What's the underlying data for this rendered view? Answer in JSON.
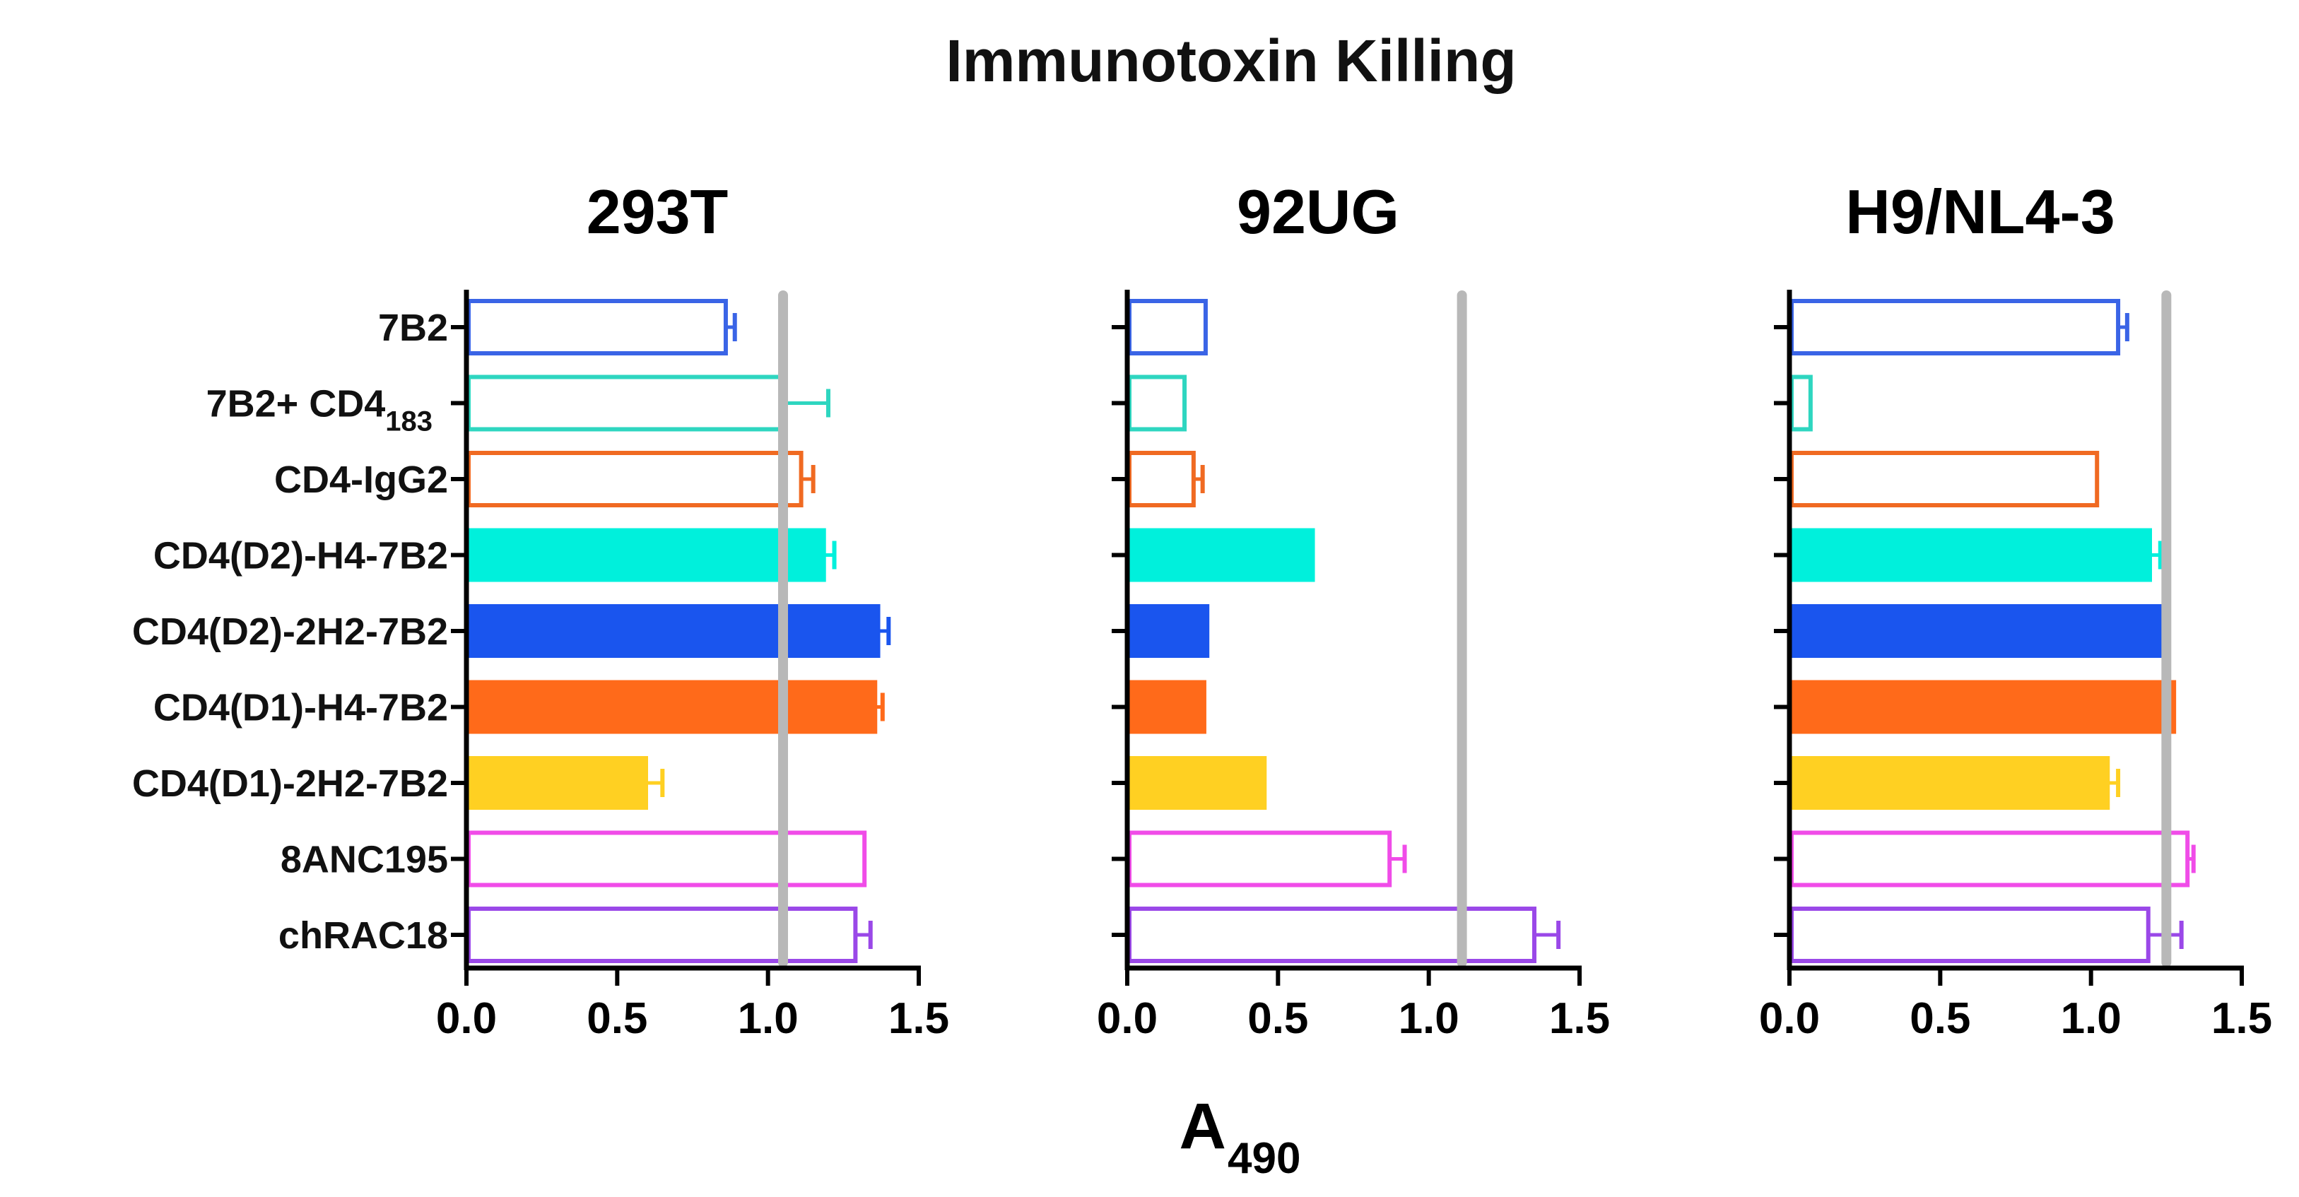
{
  "chart_data": {
    "title": "Immunotoxin Killing",
    "type": "bar",
    "orientation": "horizontal",
    "xlabel": "A",
    "xlabel_subscript": "490",
    "xlim": [
      0,
      1.5
    ],
    "xticks": [
      "0.0",
      "0.5",
      "1.0",
      "1.5"
    ],
    "categories": [
      {
        "name": "7B2",
        "sub": ""
      },
      {
        "name": "7B2+ CD4",
        "sub": "183"
      },
      {
        "name": "CD4-IgG2",
        "sub": ""
      },
      {
        "name": "CD4(D2)-H4-7B2",
        "sub": ""
      },
      {
        "name": "CD4(D2)-2H2-7B2",
        "sub": ""
      },
      {
        "name": "CD4(D1)-H4-7B2",
        "sub": ""
      },
      {
        "name": "CD4(D1)-2H2-7B2",
        "sub": ""
      },
      {
        "name": "8ANC195",
        "sub": ""
      },
      {
        "name": "chRAC18",
        "sub": ""
      }
    ],
    "bar_colors": [
      "#3a64e6",
      "#2ed6c0",
      "#f06a22",
      "#00f0dc",
      "#1a55ee",
      "#ff6a1a",
      "#ffd022",
      "#f04ce8",
      "#9a48e8"
    ],
    "bar_filled": [
      false,
      false,
      false,
      true,
      true,
      true,
      true,
      false,
      false
    ],
    "panels": [
      {
        "name": "293T",
        "values": [
          0.86,
          1.05,
          1.11,
          1.19,
          1.37,
          1.36,
          0.6,
          1.32,
          1.29
        ],
        "errors": [
          0.03,
          0.15,
          0.04,
          0.03,
          0.03,
          0.02,
          0.05,
          0.0,
          0.05
        ],
        "reference_line": 1.05
      },
      {
        "name": "92UG",
        "values": [
          0.26,
          0.19,
          0.22,
          0.62,
          0.27,
          0.26,
          0.46,
          0.87,
          1.35
        ],
        "errors": [
          0.0,
          0.0,
          0.03,
          0.0,
          0.0,
          0.0,
          0.0,
          0.05,
          0.08
        ],
        "reference_line": 1.11
      },
      {
        "name": "H9/NL4-3",
        "values": [
          1.09,
          0.07,
          1.02,
          1.2,
          1.26,
          1.28,
          1.06,
          1.32,
          1.19
        ],
        "errors": [
          0.03,
          0.0,
          0.0,
          0.03,
          0.0,
          0.0,
          0.03,
          0.02,
          0.11
        ],
        "reference_line": 1.25
      }
    ]
  }
}
